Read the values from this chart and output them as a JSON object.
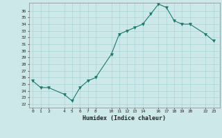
{
  "x": [
    0,
    1,
    2,
    4,
    5,
    6,
    7,
    8,
    10,
    11,
    12,
    13,
    14,
    15,
    16,
    17,
    18,
    19,
    20,
    22,
    23
  ],
  "y": [
    25.5,
    24.5,
    24.5,
    23.5,
    22.5,
    24.5,
    25.5,
    26.0,
    29.5,
    32.5,
    33.0,
    33.5,
    34.0,
    35.5,
    37.0,
    36.5,
    34.5,
    34.0,
    34.0,
    32.5,
    31.5
  ],
  "xlabel": "Humidex (Indice chaleur)",
  "xticks": [
    0,
    1,
    2,
    4,
    5,
    6,
    7,
    8,
    10,
    11,
    12,
    13,
    14,
    16,
    17,
    18,
    19,
    20,
    22,
    23
  ],
  "xtick_labels": [
    "0",
    "1",
    "2",
    "4",
    "5",
    "6",
    "7",
    "8",
    "10",
    "11",
    "12",
    "13",
    "14",
    "16",
    "17",
    "18",
    "19",
    "20",
    "22",
    "23"
  ],
  "yticks": [
    22,
    23,
    24,
    25,
    26,
    27,
    28,
    29,
    30,
    31,
    32,
    33,
    34,
    35,
    36
  ],
  "ylim": [
    21.5,
    37.2
  ],
  "xlim": [
    -0.5,
    23.8
  ],
  "line_color": "#1a7a6e",
  "marker_color": "#1a7a6e",
  "bg_color": "#cce8e8",
  "grid_color": "#aad4d4",
  "figure_bg": "#cce8e8"
}
